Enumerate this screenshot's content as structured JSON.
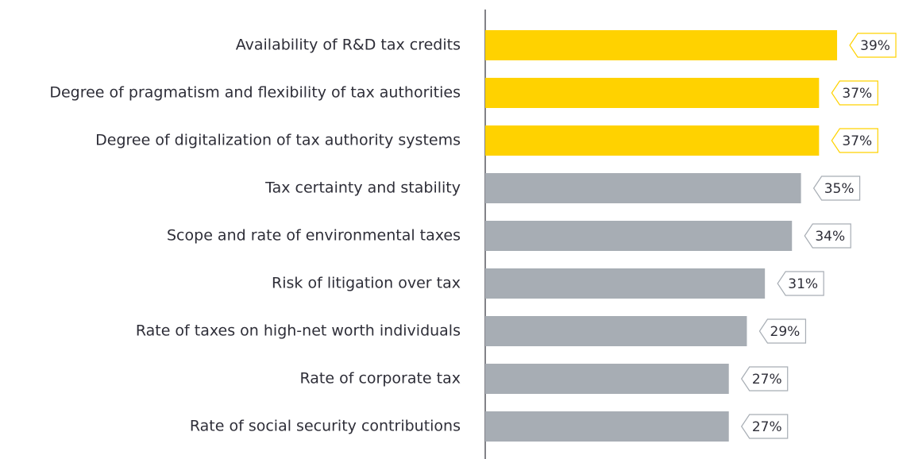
{
  "chart_data": {
    "type": "bar",
    "orientation": "horizontal",
    "categories": [
      "Availability of R&D tax credits",
      "Degree of pragmatism and flexibility of tax authorities",
      "Degree of digitalization of tax authority systems",
      "Tax certainty and stability",
      "Scope and rate of environmental taxes",
      "Risk of litigation over tax",
      "Rate of taxes on high-net worth individuals",
      "Rate of corporate tax",
      "Rate of social security contributions"
    ],
    "values": [
      39,
      37,
      37,
      35,
      34,
      31,
      29,
      27,
      27
    ],
    "value_labels": [
      "39%",
      "37%",
      "37%",
      "35%",
      "34%",
      "31%",
      "29%",
      "27%",
      "27%"
    ],
    "colors": [
      "#ffd200",
      "#ffd200",
      "#ffd200",
      "#a7adb4",
      "#a7adb4",
      "#a7adb4",
      "#a7adb4",
      "#a7adb4",
      "#a7adb4"
    ]
  }
}
